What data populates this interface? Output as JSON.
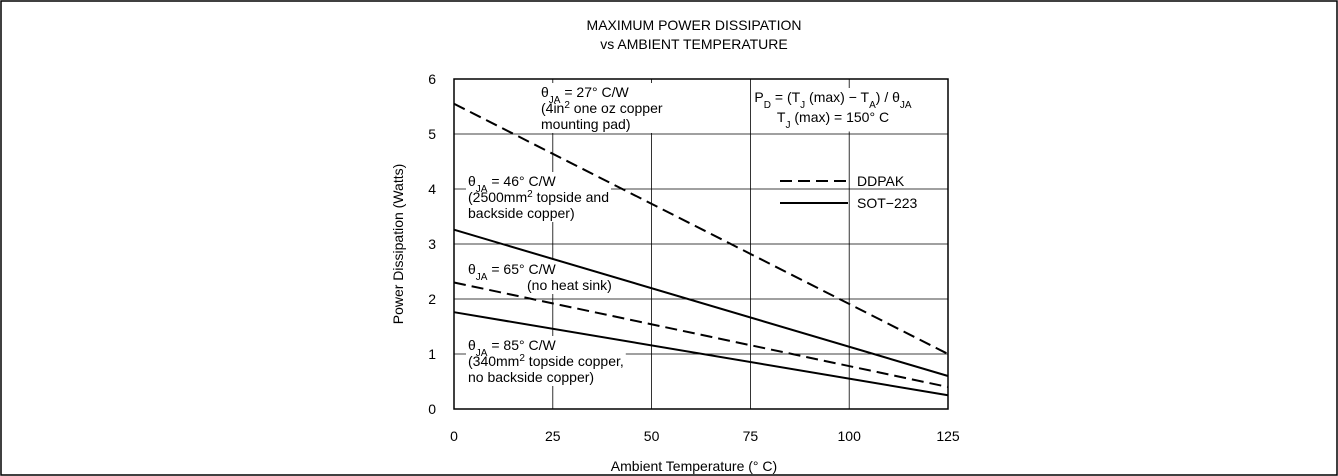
{
  "chart_data": {
    "type": "line",
    "title": [
      "MAXIMUM POWER DISSIPATION",
      "vs AMBIENT TEMPERATURE"
    ],
    "x_label": "Ambient Temperature (° C)",
    "y_label": "Power Dissipation (Watts)",
    "x": [
      0,
      125
    ],
    "series": [
      {
        "name": "DDPAK",
        "color": "#000000",
        "linestyle": "dashed",
        "values": [
          5.55,
          1.0
        ]
      },
      {
        "name": "SOT−223",
        "color": "#000000",
        "linestyle": "solid",
        "values": [
          3.26,
          0.6
        ]
      },
      {
        "name": "DDPAK",
        "color": "#000000",
        "linestyle": "dashed",
        "values": [
          2.3,
          0.4
        ]
      },
      {
        "name": "SOT−223",
        "color": "#000000",
        "linestyle": "solid",
        "values": [
          1.76,
          0.25
        ]
      }
    ],
    "xlim": [
      0,
      125
    ],
    "ylim": [
      0,
      6
    ],
    "xticks": [
      0,
      25,
      50,
      75,
      100,
      125
    ],
    "yticks": [
      0,
      1,
      2,
      3,
      4,
      5,
      6
    ],
    "grid": true,
    "legend": "upper right",
    "annotations": [
      [
        [
          {
            "text": "θ"
          },
          {
            "text": "JA",
            "script": "sub"
          },
          {
            "text": " = 27° C/W"
          }
        ],
        [
          {
            "text": "(4in"
          },
          {
            "text": "2",
            "script": "sup"
          },
          {
            "text": " one oz copper"
          }
        ],
        [
          {
            "text": "mounting pad)"
          }
        ]
      ],
      [
        [
          {
            "text": "θ"
          },
          {
            "text": "JA",
            "script": "sub"
          },
          {
            "text": " = 46° C/W"
          }
        ],
        [
          {
            "text": "(2500mm"
          },
          {
            "text": "2",
            "script": "sup"
          },
          {
            "text": " topside and"
          }
        ],
        [
          {
            "text": "backside copper)"
          }
        ]
      ],
      [
        [
          {
            "text": "θ"
          },
          {
            "text": "JA",
            "script": "sub"
          },
          {
            "text": " = 65° C/W"
          }
        ],
        [
          {
            "text": "(no heat sink)"
          }
        ]
      ],
      [
        [
          {
            "text": "θ"
          },
          {
            "text": "JA",
            "script": "sub"
          },
          {
            "text": " = 85° C/W"
          }
        ],
        [
          {
            "text": "(340mm"
          },
          {
            "text": "2",
            "script": "sup"
          },
          {
            "text": " topside copper,"
          }
        ],
        [
          {
            "text": "no backside copper)"
          }
        ]
      ],
      [
        [
          {
            "text": "P"
          },
          {
            "text": "D",
            "script": "sub"
          },
          {
            "text": " = (T"
          },
          {
            "text": "J",
            "script": "sub"
          },
          {
            "text": " (max) − T"
          },
          {
            "text": "A",
            "script": "sub"
          },
          {
            "text": ") / θ"
          },
          {
            "text": "JA",
            "script": "sub"
          }
        ],
        [
          {
            "text": "T"
          },
          {
            "text": "J",
            "script": "sub"
          },
          {
            "text": " (max) = 150° C"
          }
        ]
      ]
    ]
  }
}
